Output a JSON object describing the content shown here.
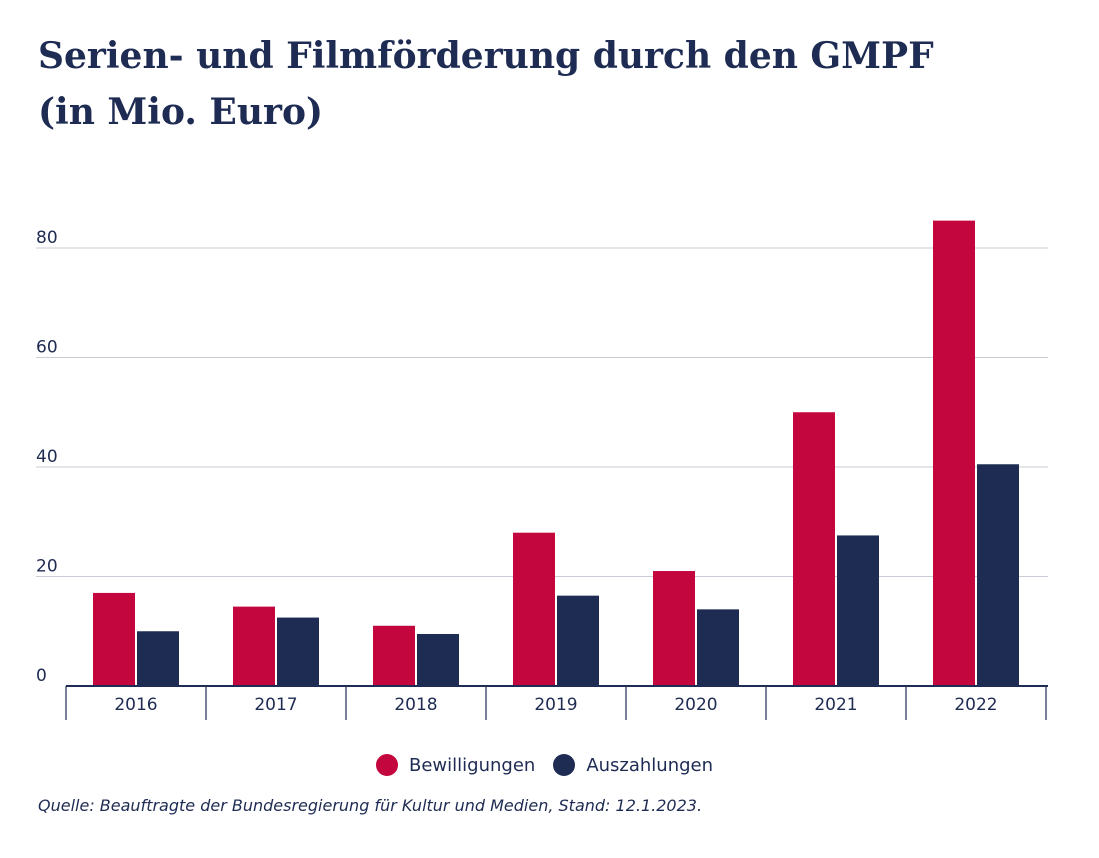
{
  "colors": {
    "bewilligungen": "#c4063f",
    "auszahlungen": "#1e2b52",
    "grid": "#c9cdd6",
    "axis": "#1e2b52",
    "text": "#1e2b52"
  },
  "chart_data": {
    "type": "bar",
    "title_line1": "Serien- und Filmförderung durch den GMPF",
    "title_line2": "(in Mio. Euro)",
    "categories": [
      "2016",
      "2017",
      "2018",
      "2019",
      "2020",
      "2021",
      "2022"
    ],
    "series": [
      {
        "name": "Bewilligungen",
        "color": "#c4063f",
        "values": [
          17,
          14.5,
          11,
          28,
          21,
          50,
          85
        ]
      },
      {
        "name": "Auszahlungen",
        "color": "#1e2b52",
        "values": [
          10,
          12.5,
          9.5,
          16.5,
          14,
          27.5,
          40.5
        ]
      }
    ],
    "yticks": [
      0,
      20,
      40,
      60,
      80
    ],
    "ylim": [
      0,
      85
    ],
    "grid": true,
    "legend_position": "bottom-center",
    "source": "Quelle: Beauftragte der Bundesregierung für Kultur und Medien, Stand: 12.1.2023."
  }
}
